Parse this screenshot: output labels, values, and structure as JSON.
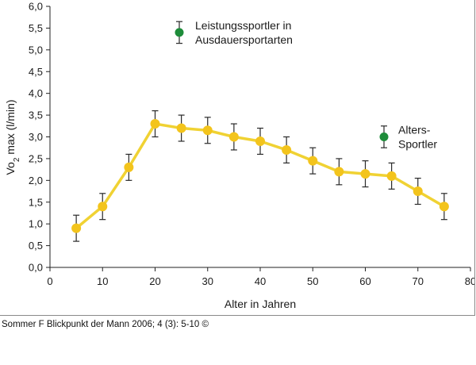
{
  "chart_data": {
    "type": "line",
    "xlabel": "Alter in Jahren",
    "ylabel": "Vo2 max (l/min)",
    "ylabel_parts": {
      "main": "Vo",
      "sub": "2",
      "rest": " max (l/min)"
    },
    "xlim": [
      0,
      80
    ],
    "ylim": [
      0,
      6
    ],
    "x_ticks": [
      {
        "value": 0,
        "label": "0"
      },
      {
        "value": 10,
        "label": "10"
      },
      {
        "value": 20,
        "label": "20"
      },
      {
        "value": 30,
        "label": "30"
      },
      {
        "value": 40,
        "label": "40"
      },
      {
        "value": 50,
        "label": "50"
      },
      {
        "value": 60,
        "label": "60"
      },
      {
        "value": 70,
        "label": "70"
      },
      {
        "value": 80,
        "label": "80"
      }
    ],
    "y_ticks": [
      {
        "value": 0,
        "label": "0,0"
      },
      {
        "value": 0.5,
        "label": "0,5"
      },
      {
        "value": 1,
        "label": "1,0"
      },
      {
        "value": 1.5,
        "label": "1,5"
      },
      {
        "value": 2,
        "label": "2,0"
      },
      {
        "value": 2.5,
        "label": "2,5"
      },
      {
        "value": 3,
        "label": "3,0"
      },
      {
        "value": 3.5,
        "label": "3,5"
      },
      {
        "value": 4,
        "label": "4,0"
      },
      {
        "value": 4.5,
        "label": "4,5"
      },
      {
        "value": 5,
        "label": "5,0"
      },
      {
        "value": 5.5,
        "label": "5,5"
      },
      {
        "value": 6,
        "label": "6,0"
      }
    ],
    "grid": false,
    "colors": {
      "line": "#f0d233",
      "marker": "#f3c41c",
      "legend_marker": "#1e8c3a",
      "error_bar": "#2a2a2a",
      "axis": "#222222"
    },
    "series": [
      {
        "x": [
          5,
          10,
          15,
          20,
          25,
          30,
          35,
          40,
          45,
          50,
          55,
          60,
          65,
          70,
          75
        ],
        "y": [
          0.9,
          1.4,
          2.3,
          3.3,
          3.2,
          3.15,
          3.0,
          2.9,
          2.7,
          2.45,
          2.2,
          2.15,
          2.1,
          1.75,
          1.4
        ],
        "error": [
          0.3,
          0.3,
          0.3,
          0.3,
          0.3,
          0.3,
          0.3,
          0.3,
          0.3,
          0.3,
          0.3,
          0.3,
          0.3,
          0.3,
          0.3
        ]
      }
    ],
    "legend": [
      {
        "position": "top-center",
        "lines": [
          "Leistungssportler in",
          "Ausdauersportarten"
        ],
        "y_value": 5.4,
        "error": 0.25
      },
      {
        "position": "right",
        "lines": [
          "Alters-",
          "Sportler"
        ],
        "y_value": 3.0,
        "error": 0.25
      }
    ]
  },
  "source": "Sommer F Blickpunkt der Mann 2006; 4 (3): 5-10 ©"
}
